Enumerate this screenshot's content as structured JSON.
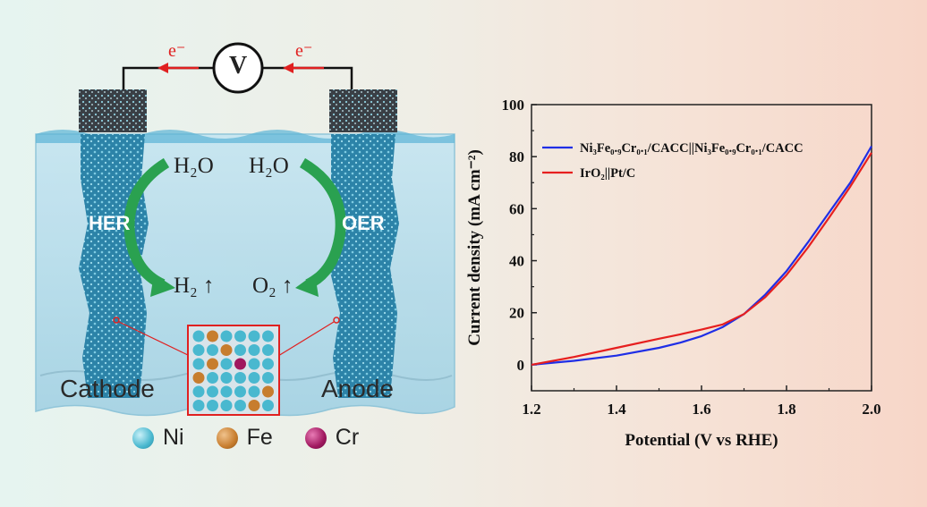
{
  "diagram": {
    "voltmeter": "V",
    "electron_left": "e⁻",
    "electron_right": "e⁻",
    "water_left": "H₂O",
    "water_right": "H₂O",
    "her": "HER",
    "oer": "OER",
    "h2": "H₂ ↑",
    "o2": "O₂ ↑",
    "cathode": "Cathode",
    "anode": "Anode",
    "legend": [
      {
        "label": "Ni",
        "color": "#49b8cf"
      },
      {
        "label": "Fe",
        "color": "#c77d2e"
      },
      {
        "label": "Cr",
        "color": "#a0185f"
      }
    ],
    "colors": {
      "electrode": "#2a7fa4",
      "water": "#aed9ea",
      "arrow": "#2aa150",
      "wire": "#111111",
      "electron": "#e02020"
    }
  },
  "chart_data": {
    "type": "line",
    "xlabel": "Potential (V vs RHE)",
    "ylabel": "Current density (mA cm⁻²)",
    "xlim": [
      1.2,
      2.0
    ],
    "ylim": [
      -10,
      100
    ],
    "xticks": [
      "1.2",
      "1.4",
      "1.6",
      "1.8",
      "2.0"
    ],
    "yticks": [
      "0",
      "20",
      "40",
      "60",
      "80",
      "100"
    ],
    "grid": false,
    "legend_position": "top-left",
    "series": [
      {
        "name": "Ni₃Fe₀.₉Cr₀.₁/CACC||Ni₃Fe₀.₉Cr₀.₁/CACC",
        "color": "#1f2ee6",
        "x": [
          1.2,
          1.3,
          1.4,
          1.5,
          1.55,
          1.6,
          1.65,
          1.7,
          1.75,
          1.8,
          1.85,
          1.9,
          1.95,
          2.0
        ],
        "y": [
          0,
          1.5,
          3.5,
          6.5,
          8.5,
          11,
          14.5,
          19.5,
          27,
          36,
          47,
          58.5,
          70,
          84
        ]
      },
      {
        "name": "IrO₂||Pt/C",
        "color": "#e61f1f",
        "x": [
          1.2,
          1.3,
          1.4,
          1.5,
          1.55,
          1.6,
          1.65,
          1.7,
          1.75,
          1.8,
          1.85,
          1.9,
          1.95,
          2.0
        ],
        "y": [
          0,
          3,
          6.5,
          10,
          11.7,
          13.5,
          15.5,
          19.5,
          26,
          34.5,
          45,
          56.5,
          68.5,
          81.5
        ]
      }
    ]
  }
}
